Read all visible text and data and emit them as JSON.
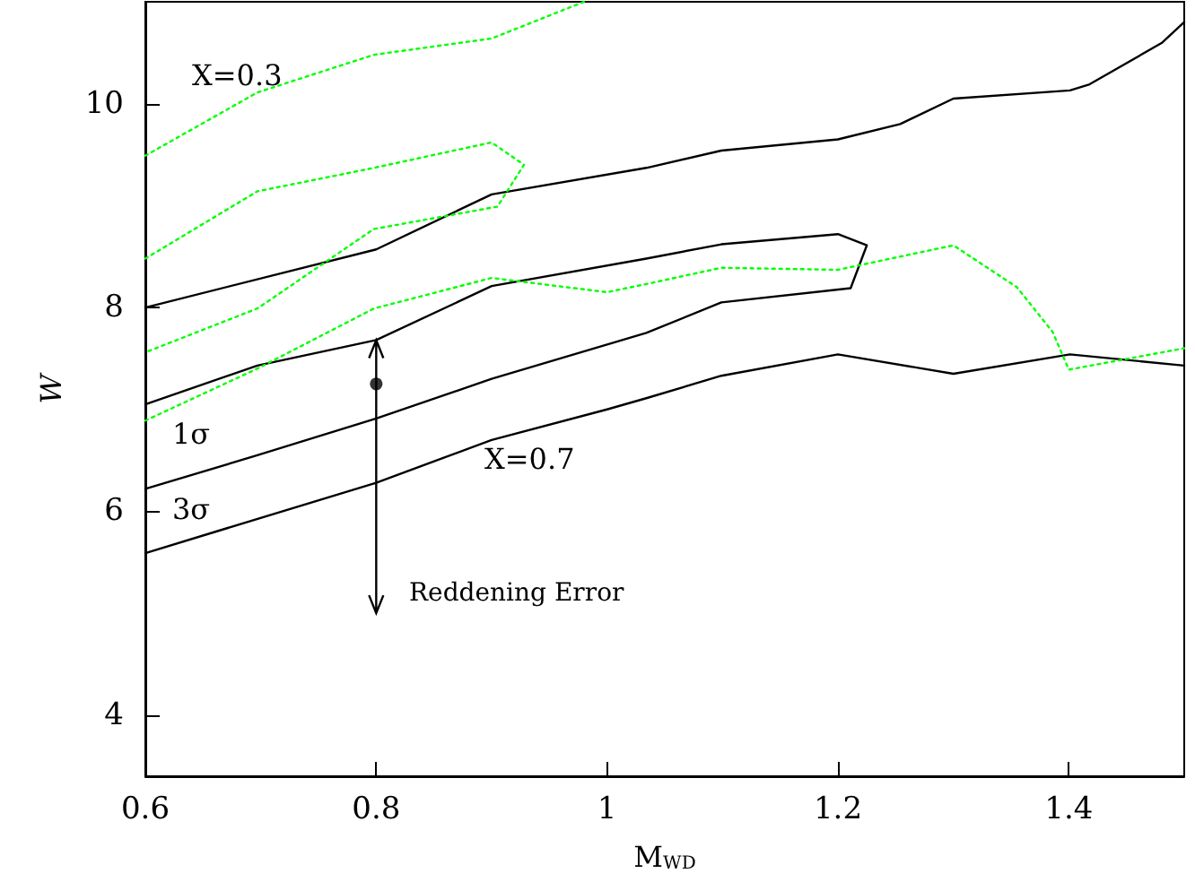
{
  "chart_data": {
    "type": "line",
    "xlabel": "M$_{WD}$",
    "ylabel": "W",
    "xlim": [
      0.6,
      1.5
    ],
    "ylim": [
      3.4,
      11
    ],
    "xticks": [
      0.6,
      0.8,
      1,
      1.2,
      1.4
    ],
    "yticks": [
      4,
      6,
      8,
      10
    ],
    "grid": false,
    "marker": "none",
    "series": [
      {
        "color": "#000000",
        "line_style": "solid",
        "x": [
          0.6,
          0.8,
          0.9,
          1.034,
          1.099,
          1.2,
          1.254,
          1.3,
          1.401,
          1.418,
          1.481,
          1.5
        ],
        "values": [
          8.0,
          8.57,
          9.11,
          9.37,
          9.54,
          9.65,
          9.8,
          10.05,
          10.13,
          10.19,
          10.6,
          10.8
        ]
      },
      {
        "color": "#000000",
        "line_style": "solid",
        "x": [
          0.6,
          0.8,
          0.9,
          1.0,
          1.034,
          1.099,
          1.2,
          1.3,
          1.401,
          1.5
        ],
        "values": [
          5.59,
          6.28,
          6.7,
          7.0,
          7.11,
          7.33,
          7.54,
          7.35,
          7.54,
          7.43
        ]
      },
      {
        "color": "#000000",
        "line_style": "solid",
        "x": [
          0.6,
          0.697,
          0.8,
          0.9,
          1.034,
          1.099,
          1.211,
          1.225,
          1.2,
          1.099,
          1.034,
          0.9,
          0.8,
          0.697,
          0.6
        ],
        "values": [
          6.22,
          6.55,
          6.91,
          7.3,
          7.75,
          8.05,
          8.19,
          8.61,
          8.72,
          8.62,
          8.48,
          8.21,
          7.68,
          7.43,
          7.05
        ]
      },
      {
        "color": "#00ff00",
        "line_style": "dotted",
        "x": [
          0.6,
          0.697,
          0.798,
          0.9,
          0.98
        ],
        "values": [
          9.49,
          10.11,
          10.48,
          10.64,
          11.0
        ]
      },
      {
        "color": "#00ff00",
        "line_style": "dotted",
        "x": [
          0.6,
          0.697,
          0.798,
          0.9,
          0.928,
          0.905,
          0.798,
          0.697,
          0.6
        ],
        "values": [
          8.48,
          9.14,
          9.37,
          9.62,
          9.4,
          8.99,
          8.77,
          7.99,
          7.56
        ]
      },
      {
        "color": "#00ff00",
        "line_style": "dotted",
        "x": [
          0.6,
          0.697,
          0.798,
          0.9,
          1.0,
          1.034,
          1.099,
          1.2,
          1.3,
          1.355,
          1.386,
          1.4,
          1.5
        ],
        "values": [
          6.89,
          7.4,
          7.99,
          8.29,
          8.15,
          8.23,
          8.39,
          8.37,
          8.61,
          8.2,
          7.76,
          7.39,
          7.6
        ]
      },
      {
        "type": "scatter",
        "marker": "circle",
        "color": "#000000",
        "x": [
          0.8
        ],
        "values": [
          7.25
        ],
        "errors": [
          [
            5.0,
            7.68
          ]
        ]
      }
    ],
    "annotations": [
      "X=0.3",
      "1σ",
      "3σ",
      "X=0.7",
      "Reddening Error"
    ]
  }
}
